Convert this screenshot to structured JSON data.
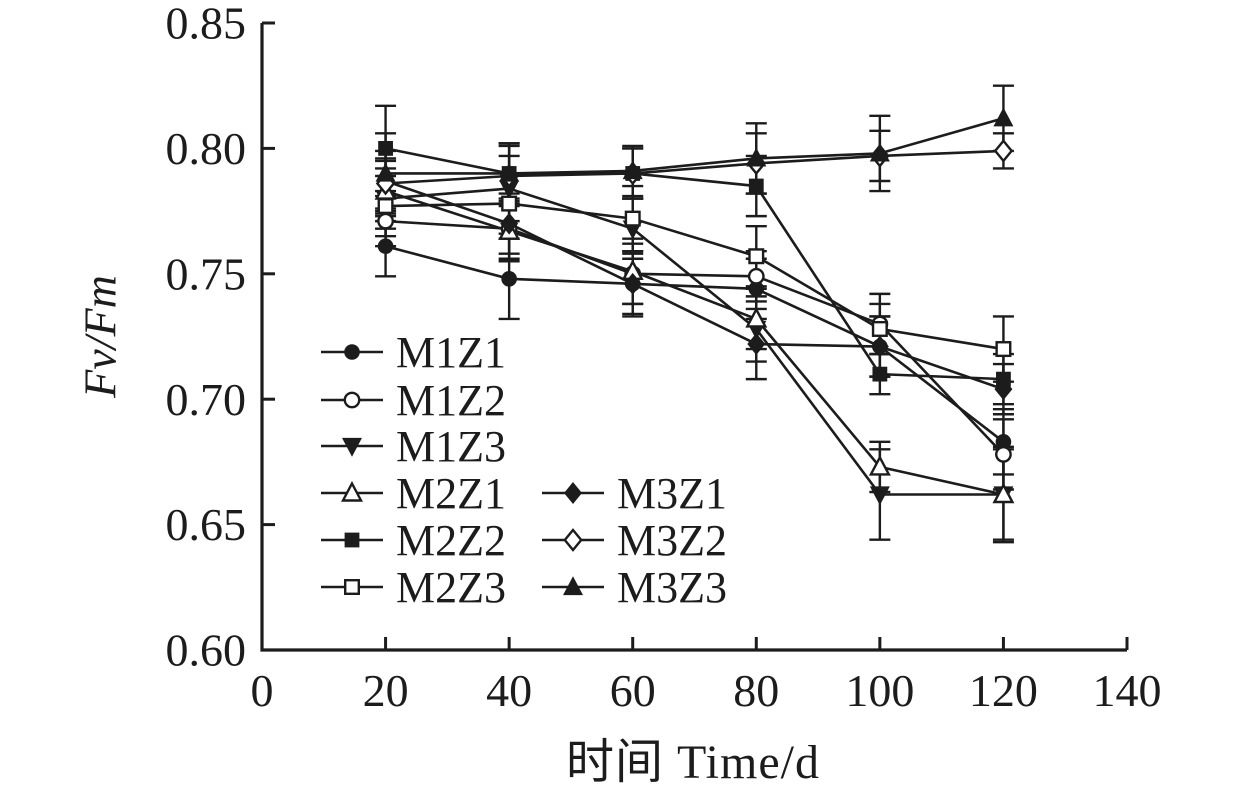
{
  "figure": {
    "background": "#ffffff",
    "ink_color": "#1c1c1c"
  },
  "chart_data": {
    "type": "line",
    "title": "",
    "xlabel": "时间 Time/d",
    "ylabel": "Fv/Fm",
    "xlim": [
      0,
      140
    ],
    "ylim": [
      0.6,
      0.85
    ],
    "grid": false,
    "error_bars": true,
    "legend_position": "inside-lower-left",
    "x_ticks": [
      0,
      20,
      40,
      60,
      80,
      100,
      120,
      140
    ],
    "x_tick_labels": [
      "0",
      "20",
      "40",
      "60",
      "80",
      "100",
      "120",
      "140"
    ],
    "y_ticks": [
      0.6,
      0.65,
      0.7,
      0.75,
      0.8,
      0.85
    ],
    "y_tick_labels": [
      "0.60",
      "0.65",
      "0.70",
      "0.75",
      "0.80",
      "0.85"
    ],
    "x": [
      20,
      40,
      60,
      80,
      100,
      120
    ],
    "series": [
      {
        "name": "M1Z1",
        "marker": "circle-filled",
        "values": [
          0.761,
          0.748,
          0.746,
          0.744,
          0.721,
          0.683
        ],
        "errors": [
          0.012,
          0.016,
          0.013,
          0.012,
          0.012,
          0.013
        ]
      },
      {
        "name": "M1Z2",
        "marker": "circle-open",
        "values": [
          0.771,
          0.768,
          0.75,
          0.749,
          0.73,
          0.678
        ],
        "errors": [
          0.01,
          0.012,
          0.012,
          0.01,
          0.012,
          0.014
        ]
      },
      {
        "name": "M1Z3",
        "marker": "triangle-down-filled",
        "values": [
          0.78,
          0.784,
          0.768,
          0.728,
          0.662,
          0.662
        ],
        "errors": [
          0.012,
          0.013,
          0.012,
          0.013,
          0.018,
          0.018
        ]
      },
      {
        "name": "M2Z1",
        "marker": "triangle-up-open",
        "values": [
          0.783,
          0.767,
          0.751,
          0.732,
          0.673,
          0.662
        ],
        "errors": [
          0.012,
          0.012,
          0.013,
          0.012,
          0.01,
          0.019
        ]
      },
      {
        "name": "M2Z2",
        "marker": "square-filled",
        "values": [
          0.8,
          0.79,
          0.79,
          0.785,
          0.71,
          0.708
        ],
        "errors": [
          0.017,
          0.012,
          0.01,
          0.012,
          0.008,
          0.01
        ]
      },
      {
        "name": "M2Z3",
        "marker": "square-open",
        "values": [
          0.777,
          0.778,
          0.772,
          0.757,
          0.728,
          0.72
        ],
        "errors": [
          0.012,
          0.012,
          0.013,
          0.012,
          0.01,
          0.013
        ]
      },
      {
        "name": "M3Z1",
        "marker": "diamond-filled",
        "values": [
          0.787,
          0.77,
          0.746,
          0.722,
          0.721,
          0.704
        ],
        "errors": [
          0.012,
          0.012,
          0.012,
          0.014,
          0.012,
          0.01
        ]
      },
      {
        "name": "M3Z2",
        "marker": "diamond-open",
        "values": [
          0.786,
          0.789,
          0.79,
          0.794,
          0.797,
          0.799
        ],
        "errors": [
          0.01,
          0.012,
          0.01,
          0.012,
          0.01,
          0.007
        ]
      },
      {
        "name": "M3Z3",
        "marker": "triangle-up-filled",
        "values": [
          0.79,
          0.79,
          0.791,
          0.796,
          0.798,
          0.812
        ],
        "errors": [
          0.016,
          0.012,
          0.01,
          0.014,
          0.015,
          0.013
        ]
      }
    ],
    "legend_columns": [
      [
        "M1Z1",
        "M1Z2",
        "M1Z3",
        "M2Z1",
        "M2Z2",
        "M2Z3"
      ],
      [
        "M3Z1",
        "M3Z2",
        "M3Z3"
      ]
    ]
  }
}
